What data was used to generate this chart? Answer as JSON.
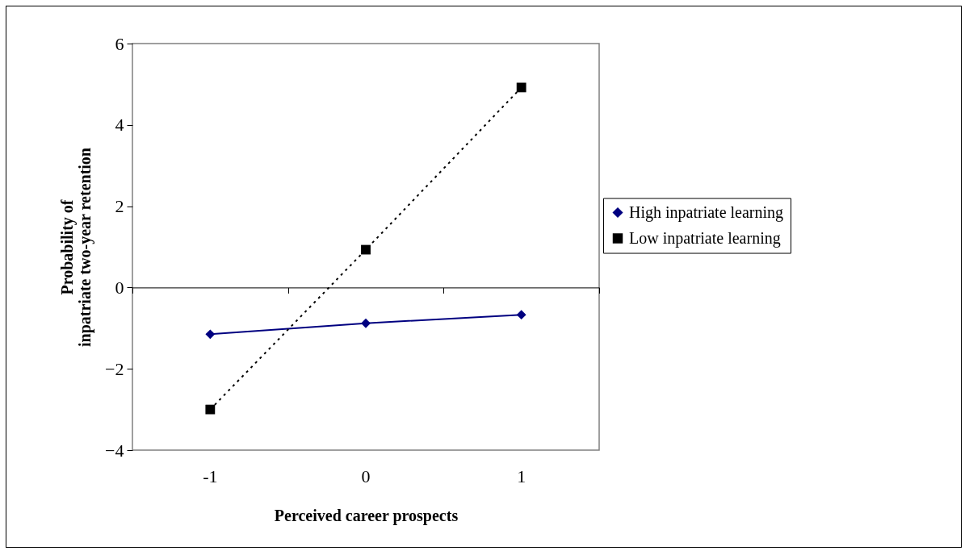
{
  "chart_data": {
    "type": "line",
    "xlabel": "Perceived career prospects",
    "ylabel": "Probability of\ninpatriate two-year retention",
    "categories": [
      "-1",
      "0",
      "1"
    ],
    "ylim": [
      -4,
      6
    ],
    "yticks": [
      -4,
      -2,
      0,
      2,
      4,
      6
    ],
    "legend": "right",
    "series": [
      {
        "name": "High inpatriate learning",
        "color": "#000080",
        "values": [
          -1.15,
          -0.88,
          -0.67
        ],
        "marker": "diamond",
        "line_style": "solid"
      },
      {
        "name": "Low inpatriate learning",
        "color": "#000000",
        "values": [
          -3.0,
          0.93,
          4.92
        ],
        "marker": "square",
        "line_style": "dotted"
      }
    ]
  }
}
